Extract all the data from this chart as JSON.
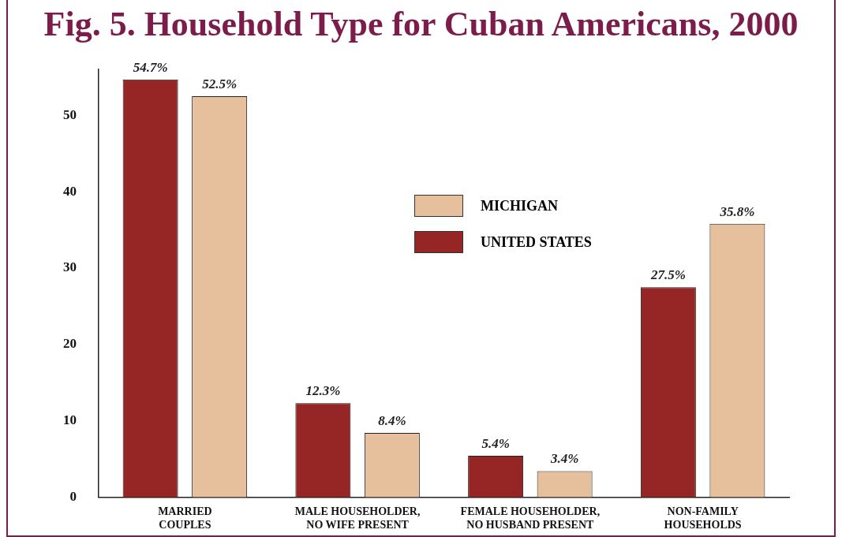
{
  "chart_data": {
    "type": "bar",
    "title": "Fig. 5. Household Type for Cuban Americans, 2000",
    "categories": [
      "MARRIED COUPLES",
      "MALE HOUSEHOLDER, NO WIFE PRESENT",
      "FEMALE HOUSEHOLDER, NO HUSBAND PRESENT",
      "NON-FAMILY HOUSEHOLDS"
    ],
    "series": [
      {
        "name": "UNITED STATES",
        "color": "#962626",
        "values": [
          54.7,
          12.3,
          5.4,
          27.5
        ],
        "value_labels": [
          "54.7%",
          "12.3%",
          "5.4%",
          "27.5%"
        ]
      },
      {
        "name": "MICHIGAN",
        "color": "#e6c09c",
        "values": [
          52.5,
          8.4,
          3.4,
          35.8
        ],
        "value_labels": [
          "52.5%",
          "8.4%",
          "3.4%",
          "35.8%"
        ]
      }
    ],
    "ylim": [
      0,
      56
    ],
    "yticks": [
      0,
      10,
      20,
      30,
      40,
      50
    ],
    "grid": false,
    "legend": "top right"
  }
}
